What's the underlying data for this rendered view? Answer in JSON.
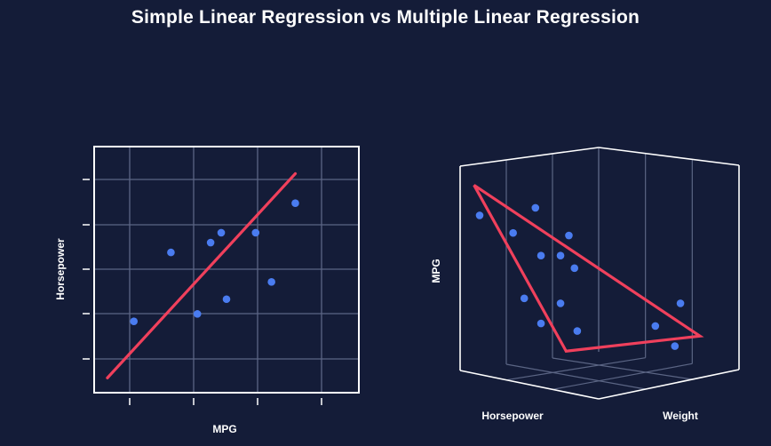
{
  "title": "Simple Linear Regression vs Multiple Linear Regression",
  "colors": {
    "background": "#141c38",
    "point": "#4a7cf0",
    "regression": "#f0405c",
    "grid": "#5b6584",
    "frame": "#ffffff"
  },
  "chart_data": [
    {
      "type": "scatter",
      "title": "",
      "xlabel": "MPG",
      "ylabel": "Horsepower",
      "xlim": [
        0,
        10
      ],
      "ylim": [
        0,
        10
      ],
      "grid": true,
      "series": [
        {
          "x": [
            1.5,
            2.9,
            3.9,
            4.4,
            4.8,
            5.0,
            6.1,
            6.7,
            7.6
          ],
          "y": [
            2.9,
            5.7,
            3.2,
            6.1,
            6.5,
            3.8,
            6.5,
            4.5,
            7.7
          ]
        }
      ],
      "regression_line": {
        "x": [
          0.5,
          7.6
        ],
        "y": [
          0.6,
          8.9
        ]
      }
    },
    {
      "type": "scatter",
      "title": "",
      "xlabel": "Horsepower",
      "zlabel": "Weight",
      "ylabel": "MPG",
      "grid": true,
      "points_projected": [
        [
          0.3,
          0.18
        ],
        [
          0.43,
          0.16
        ],
        [
          0.55,
          0.34
        ],
        [
          0.7,
          0.33
        ],
        [
          0.53,
          0.41
        ],
        [
          0.45,
          0.53
        ],
        [
          0.5,
          0.55
        ],
        [
          0.58,
          0.56
        ],
        [
          0.6,
          0.51
        ],
        [
          0.49,
          0.6
        ],
        [
          0.59,
          0.62
        ],
        [
          0.66,
          0.6
        ],
        [
          0.55,
          0.7
        ],
        [
          0.49,
          0.74
        ],
        [
          0.46,
          0.78
        ],
        [
          0.54,
          0.85
        ]
      ],
      "regression_plane_projected": [
        [
          0.44,
          0.87
        ],
        [
          0.75,
          0.3
        ],
        [
          0.37,
          0.38
        ]
      ]
    }
  ]
}
